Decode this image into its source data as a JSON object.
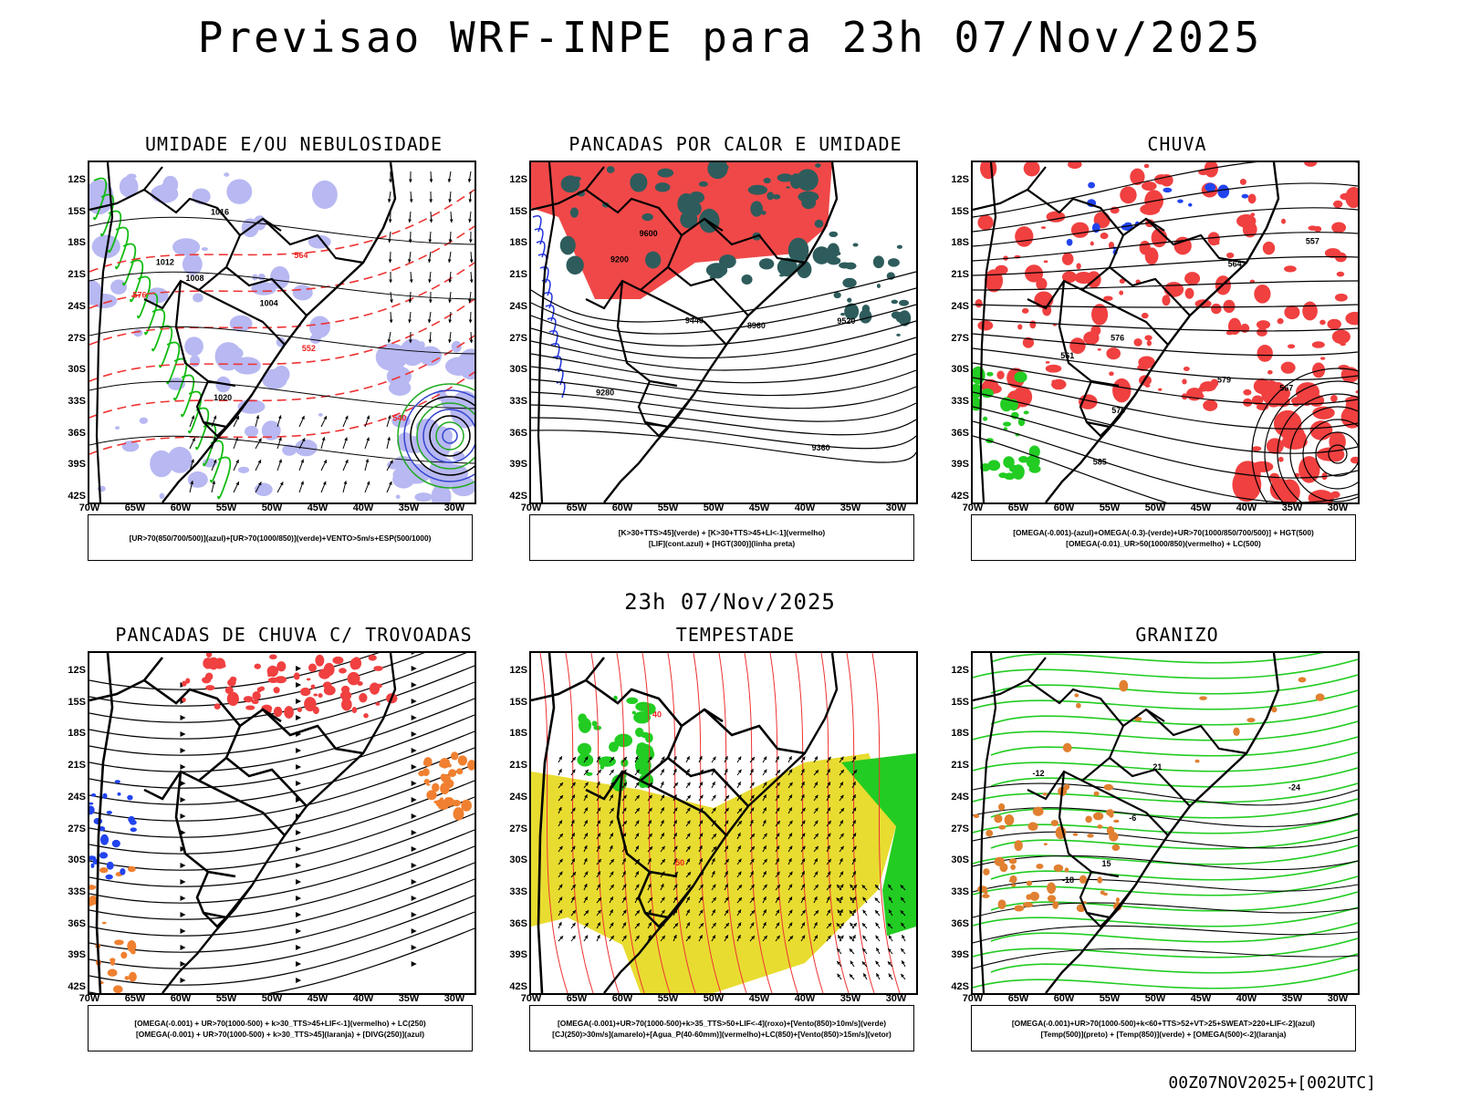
{
  "title": "Previsao WRF-INPE  para 23h 07/Nov/2025",
  "mid_title": "23h 07/Nov/2025",
  "footer": "00Z07NOV2025+[002UTC]",
  "axes": {
    "lat_labels": [
      "12S",
      "15S",
      "18S",
      "21S",
      "24S",
      "27S",
      "30S",
      "33S",
      "36S",
      "39S",
      "42S"
    ],
    "lon_labels": [
      "70W",
      "65W",
      "60W",
      "55W",
      "50W",
      "45W",
      "40W",
      "35W",
      "30W"
    ]
  },
  "panels": [
    {
      "title": "UMIDADE E/OU NEBULOSIDADE",
      "legend": [
        "[UR>70(850/700/500)](azul)+[UR>70(1000/850)](verde)+VENTO>5m/s+ESP(500/1000)"
      ],
      "contour_labels": [
        {
          "text": "1008",
          "color": "#000"
        },
        {
          "text": "1012",
          "color": "#000"
        },
        {
          "text": "1004",
          "color": "#000"
        },
        {
          "text": "1016",
          "color": "#000"
        },
        {
          "text": "1020",
          "color": "#000"
        },
        {
          "text": "564",
          "color": "#ee2222"
        },
        {
          "text": "576",
          "color": "#ee2222"
        },
        {
          "text": "552",
          "color": "#ee2222"
        },
        {
          "text": "540",
          "color": "#ee2222"
        }
      ],
      "colors": {
        "blue": "#b8b8f2",
        "green": "#11bb11",
        "red": "#ee3333"
      }
    },
    {
      "title": "PANCADAS POR CALOR E UMIDADE",
      "legend": [
        "[K>30+TTS>45](verde) + [K>30+TTS>45+LI<-1](vermelho)",
        "[LIF](cont.azul) + [HGT(300)](linha preta)"
      ],
      "contour_labels": [
        {
          "text": "9600",
          "color": "#000"
        },
        {
          "text": "9520",
          "color": "#000"
        },
        {
          "text": "9440",
          "color": "#000"
        },
        {
          "text": "9360",
          "color": "#000"
        },
        {
          "text": "9280",
          "color": "#000"
        },
        {
          "text": "9200",
          "color": "#000"
        },
        {
          "text": "8960",
          "color": "#000"
        }
      ],
      "colors": {
        "red": "#f04848",
        "darkgreen": "#2e5c5c",
        "blue": "#2233dd"
      }
    },
    {
      "title": "CHUVA",
      "legend": [
        "[OMEGA(-0.001)-(azul)+OMEGA(-0.3)-(verde)+UR>70(1000/850/700/500)] + HGT(500)",
        "[OMEGA(-0.01)_UR>50(1000/850)(vermelho) + LC(500)"
      ],
      "contour_labels": [
        {
          "text": "585",
          "color": "#000"
        },
        {
          "text": "579",
          "color": "#000"
        },
        {
          "text": "576",
          "color": "#000"
        },
        {
          "text": "570",
          "color": "#000"
        },
        {
          "text": "567",
          "color": "#000"
        },
        {
          "text": "564",
          "color": "#000"
        },
        {
          "text": "561",
          "color": "#000"
        },
        {
          "text": "557",
          "color": "#000"
        }
      ],
      "colors": {
        "red": "#f04040",
        "green": "#22cc22",
        "blue": "#2244ee"
      }
    },
    {
      "title": "PANCADAS DE CHUVA C/ TROVOADAS",
      "legend": [
        "[OMEGA(-0.001) + UR>70(1000-500) + k>30_TTS>45+LIF<-1](vermelho) + LC(250)",
        "[OMEGA(-0.001) + UR>70(1000-500) + k>30_TTS>45](laranja) + [DIVG(250)](azul)"
      ],
      "contour_labels": [],
      "colors": {
        "red": "#f04040",
        "orange": "#f08030",
        "blue": "#2244ee"
      }
    },
    {
      "title": "TEMPESTADE",
      "legend": [
        "[OMEGA(-0.001)+UR>70(1000-500)+k>35_TTS>50+LIF<-4](roxo)+[Vento(850)>10m/s](verde)",
        "[CJ(250)>30m/s](amarelo)+[Agua_P(40-60mm)](vermelho)+LC(850)+[Vento(850)>15m/s](vetor)"
      ],
      "contour_labels": [
        {
          "text": "50",
          "color": "#ee2222"
        },
        {
          "text": "40",
          "color": "#ee2222"
        }
      ],
      "colors": {
        "yellow": "#e8dc30",
        "green": "#22cc22",
        "red": "#ee3333"
      }
    },
    {
      "title": "GRANIZO",
      "legend": [
        "[OMEGA(-0.001)+UR>70(1000-500)+k<60+TTS>52+VT>25+SWEAT>220+LIF<-2](azul)",
        "[Temp(500)](preto) + [Temp(850)](verde) + [OMEGA(500)<-2](laranja)"
      ],
      "contour_labels": [
        {
          "text": "-6",
          "color": "#000"
        },
        {
          "text": "-12",
          "color": "#000"
        },
        {
          "text": "-18",
          "color": "#000"
        },
        {
          "text": "-24",
          "color": "#000"
        },
        {
          "text": "15",
          "color": "#000"
        },
        {
          "text": "21",
          "color": "#000"
        }
      ],
      "colors": {
        "green": "#22cc22",
        "orange": "#e08030"
      }
    }
  ]
}
